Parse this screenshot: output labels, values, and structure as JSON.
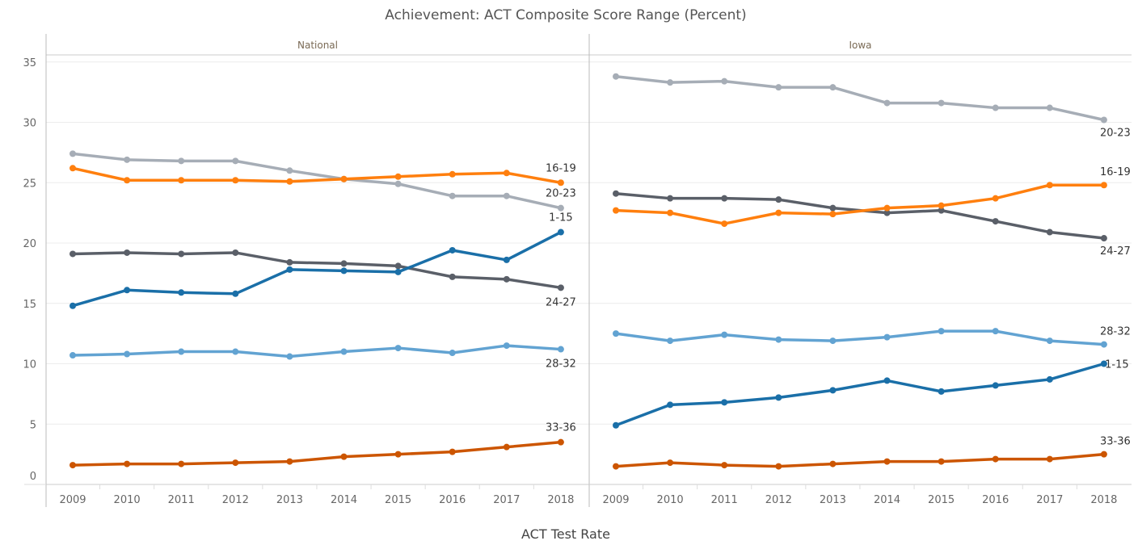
{
  "chart_data": {
    "type": "line",
    "title": "Achievement: ACT Composite Score Range (Percent)",
    "xlabel": "ACT Test Rate",
    "ylabel": "",
    "ylim": [
      0,
      35
    ],
    "yticks": [
      0,
      5,
      10,
      15,
      20,
      25,
      30,
      35
    ],
    "grid": true,
    "legend": "end-of-line labels",
    "categories": [
      "2009",
      "2010",
      "2011",
      "2012",
      "2013",
      "2014",
      "2015",
      "2016",
      "2017",
      "2018"
    ],
    "colors": {
      "1-15": "#1a6fa8",
      "16-19": "#ff7f0e",
      "20-23": "#a6adb6",
      "24-27": "#5a5f68",
      "28-32": "#62a3d2",
      "33-36": "#cc5500"
    },
    "panels": [
      {
        "name": "National",
        "series": [
          {
            "name": "20-23",
            "values": [
              27.4,
              26.9,
              26.8,
              26.8,
              26.0,
              25.3,
              24.9,
              23.9,
              23.9,
              22.9
            ]
          },
          {
            "name": "16-19",
            "values": [
              26.2,
              25.2,
              25.2,
              25.2,
              25.1,
              25.3,
              25.5,
              25.7,
              25.8,
              25.0
            ]
          },
          {
            "name": "24-27",
            "values": [
              19.1,
              19.2,
              19.1,
              19.2,
              18.4,
              18.3,
              18.1,
              17.2,
              17.0,
              16.3
            ]
          },
          {
            "name": "1-15",
            "values": [
              14.8,
              16.1,
              15.9,
              15.8,
              17.8,
              17.7,
              17.6,
              19.4,
              18.6,
              20.9
            ]
          },
          {
            "name": "28-32",
            "values": [
              10.7,
              10.8,
              11.0,
              11.0,
              10.6,
              11.0,
              11.3,
              10.9,
              11.5,
              11.2
            ]
          },
          {
            "name": "33-36",
            "values": [
              1.6,
              1.7,
              1.7,
              1.8,
              1.9,
              2.3,
              2.5,
              2.7,
              3.1,
              3.5
            ]
          }
        ]
      },
      {
        "name": "Iowa",
        "series": [
          {
            "name": "20-23",
            "values": [
              33.8,
              33.3,
              33.4,
              32.9,
              32.9,
              31.6,
              31.6,
              31.2,
              31.2,
              30.2
            ]
          },
          {
            "name": "24-27",
            "values": [
              24.1,
              23.7,
              23.7,
              23.6,
              22.9,
              22.5,
              22.7,
              21.8,
              20.9,
              20.4
            ]
          },
          {
            "name": "16-19",
            "values": [
              22.7,
              22.5,
              21.6,
              22.5,
              22.4,
              22.9,
              23.1,
              23.7,
              24.8,
              24.8
            ]
          },
          {
            "name": "28-32",
            "values": [
              12.5,
              11.9,
              12.4,
              12.0,
              11.9,
              12.2,
              12.7,
              12.7,
              11.9,
              11.6
            ]
          },
          {
            "name": "1-15",
            "values": [
              4.9,
              6.6,
              6.8,
              7.2,
              7.8,
              8.6,
              7.7,
              8.2,
              8.7,
              10.0
            ]
          },
          {
            "name": "33-36",
            "values": [
              1.5,
              1.8,
              1.6,
              1.5,
              1.7,
              1.9,
              1.9,
              2.1,
              2.1,
              2.5
            ]
          }
        ]
      }
    ]
  }
}
